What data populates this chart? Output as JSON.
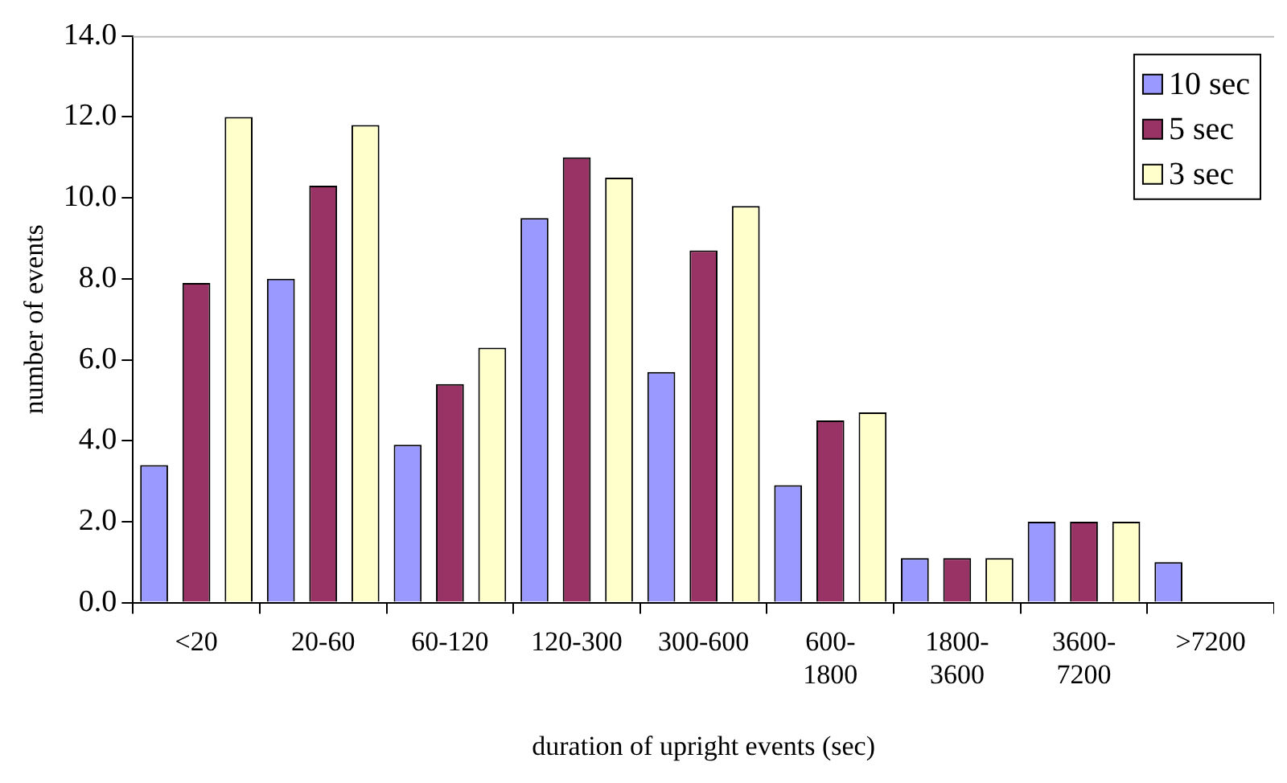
{
  "chart_data": {
    "type": "bar",
    "xlabel": "duration of upright events (sec)",
    "ylabel": "number of events",
    "categories": [
      "<20",
      "20-60",
      "60-120",
      "120-300",
      "300-600",
      "600-1800",
      "1800-3600",
      "3600-7200",
      ">7200"
    ],
    "series": [
      {
        "name": "10 sec",
        "color": "#9999ff",
        "values": [
          3.4,
          8.0,
          3.9,
          9.5,
          5.7,
          2.9,
          1.1,
          2.0,
          1.0
        ]
      },
      {
        "name": "5 sec",
        "color": "#993366",
        "values": [
          7.9,
          10.3,
          5.4,
          11.0,
          8.7,
          4.5,
          1.1,
          2.0,
          null
        ]
      },
      {
        "name": "3 sec",
        "color": "#ffffcc",
        "values": [
          12.0,
          11.8,
          6.3,
          10.5,
          9.8,
          4.7,
          1.1,
          2.0,
          null
        ]
      }
    ],
    "ylim": [
      0,
      14
    ],
    "yticks": [
      {
        "value": 0,
        "label": "0.0"
      },
      {
        "value": 2,
        "label": "2.0"
      },
      {
        "value": 4,
        "label": "4.0"
      },
      {
        "value": 6,
        "label": "6.0"
      },
      {
        "value": 8,
        "label": "8.0"
      },
      {
        "value": 10,
        "label": "10.0"
      },
      {
        "value": 12,
        "label": "12.0"
      },
      {
        "value": 14,
        "label": "14.0"
      }
    ],
    "grid": false,
    "legend": "top right"
  }
}
